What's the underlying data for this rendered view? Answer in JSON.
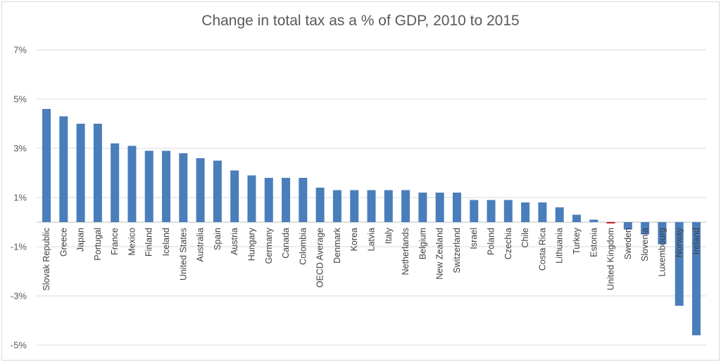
{
  "chart_data": {
    "type": "bar",
    "title": "Change in total tax as a % of GDP, 2010 to 2015",
    "xlabel": "",
    "ylabel": "",
    "ylim": [
      -5,
      7
    ],
    "yticks": [
      "7%",
      "5%",
      "3%",
      "1%",
      "-1%",
      "-3%",
      "-5%"
    ],
    "ytick_values": [
      7,
      5,
      3,
      1,
      -1,
      -3,
      -5
    ],
    "grid": true,
    "bar_color": "#4a7ebb",
    "highlight_color": "#c00000",
    "highlight_category": "United Kingdom",
    "categories": [
      "Slovak Republic",
      "Greece",
      "Japan",
      "Portugal",
      "France",
      "Mexico",
      "Finland",
      "Iceland",
      "United States",
      "Australia",
      "Spain",
      "Austria",
      "Hungary",
      "Germany",
      "Canada",
      "Colombia",
      "OECD Average",
      "Denmark",
      "Korea",
      "Latvia",
      "Italy",
      "Netherlands",
      "Belgium",
      "New Zealand",
      "Switzerland",
      "Israel",
      "Poland",
      "Czechia",
      "Chile",
      "Costa Rica",
      "Lithuania",
      "Turkey",
      "Estonia",
      "United Kingdom",
      "Sweden",
      "Slovenia",
      "Luxembourg",
      "Norway",
      "Ireland"
    ],
    "values": [
      4.6,
      4.3,
      4.0,
      4.0,
      3.2,
      3.1,
      2.9,
      2.9,
      2.8,
      2.6,
      2.5,
      2.1,
      1.9,
      1.8,
      1.8,
      1.8,
      1.4,
      1.3,
      1.3,
      1.3,
      1.3,
      1.3,
      1.2,
      1.2,
      1.2,
      0.9,
      0.9,
      0.9,
      0.8,
      0.8,
      0.6,
      0.3,
      0.1,
      -0.05,
      -0.3,
      -0.5,
      -0.9,
      -3.4,
      -4.6
    ]
  }
}
